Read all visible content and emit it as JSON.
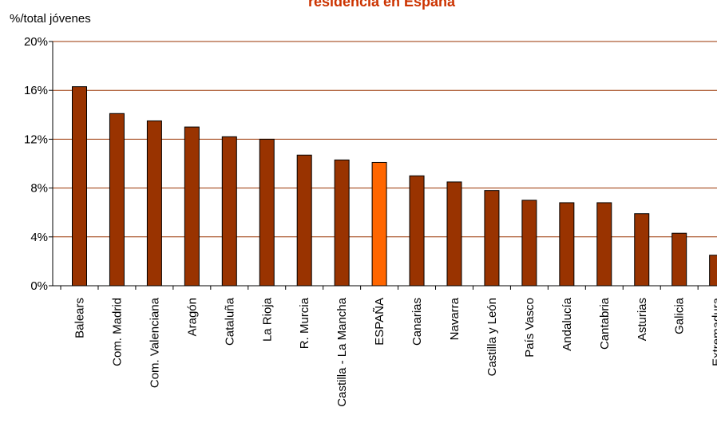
{
  "chart_data": {
    "type": "bar",
    "title": "residencia en España",
    "ylabel": "%/total jóvenes",
    "xlabel": "",
    "ylim": [
      0,
      20
    ],
    "yticks": [
      "0%",
      "4%",
      "8%",
      "12%",
      "16%",
      "20%"
    ],
    "ytick_values": [
      0,
      4,
      8,
      12,
      16,
      20
    ],
    "grid": true,
    "categories": [
      "Balears",
      "Com. Madrid",
      "Com. Valenciana",
      "Aragón",
      "Cataluña",
      "La Rioja",
      "R. Murcia",
      "Castilla - La Mancha",
      "ESPAÑA",
      "Canarias",
      "Navarra",
      "Castilla y León",
      "País Vasco",
      "Andalucía",
      "Cantabria",
      "Asturias",
      "Galicia",
      "Extremadura"
    ],
    "values": [
      16.3,
      14.1,
      13.5,
      13.0,
      12.2,
      12.0,
      10.7,
      10.3,
      10.1,
      9.0,
      8.5,
      7.8,
      7.0,
      6.8,
      6.8,
      5.9,
      4.3,
      2.5
    ],
    "highlight_category": "ESPAÑA",
    "colors": {
      "bar": "#993300",
      "highlight": "#ff6600",
      "grid": "#993300",
      "title": "#cc3300",
      "outline": "#000000"
    }
  }
}
